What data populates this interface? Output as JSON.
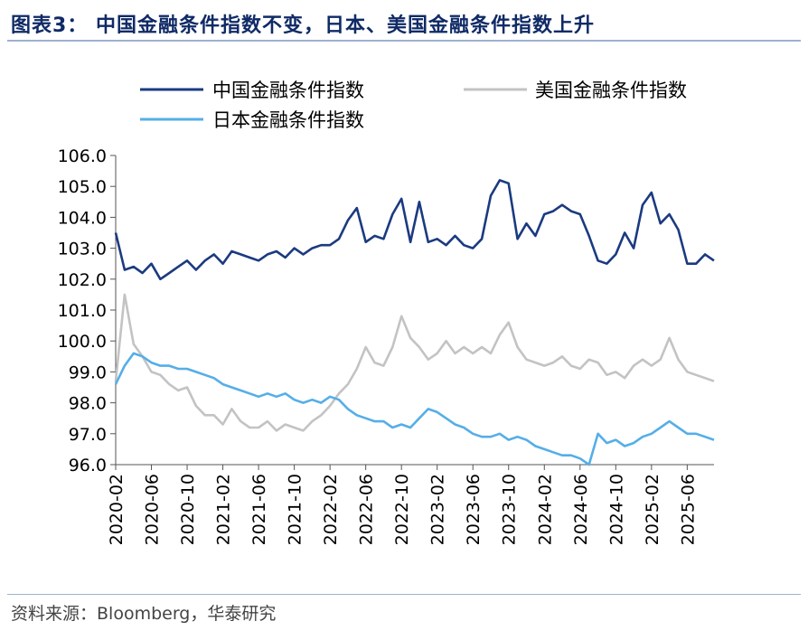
{
  "header": {
    "title": "图表3：  中国金融条件指数不变，日本、美国金融条件指数上升"
  },
  "footer": {
    "source": "资料来源：Bloomberg，华泰研究"
  },
  "colors": {
    "china": "#1b3a80",
    "us": "#c3c3c3",
    "japan": "#55aee8",
    "title": "#0f2a66",
    "rule": "#9fb0d0"
  },
  "chart_data": {
    "type": "line",
    "title": "",
    "xlabel": "",
    "ylabel": "",
    "ylim": [
      96.0,
      106.0
    ],
    "y_ticks": [
      "106.0",
      "105.0",
      "104.0",
      "103.0",
      "102.0",
      "101.0",
      "100.0",
      "99.0",
      "98.0",
      "97.0",
      "96.0"
    ],
    "x_tick_labels": [
      "2020-02",
      "2020-06",
      "2020-10",
      "2021-02",
      "2021-06",
      "2021-10",
      "2022-02",
      "2022-06",
      "2022-10",
      "2023-02",
      "2023-06",
      "2023-10",
      "2024-02",
      "2024-06",
      "2024-10",
      "2025-02",
      "2025-06"
    ],
    "x_range": [
      "2020-02",
      "2025-09"
    ],
    "grid": false,
    "legend_placement": "top",
    "series": [
      {
        "name": "中国金融条件指数",
        "color": "#1b3a80",
        "points": [
          [
            "2020-02",
            103.5
          ],
          [
            "2020-03",
            102.3
          ],
          [
            "2020-04",
            102.4
          ],
          [
            "2020-05",
            102.2
          ],
          [
            "2020-06",
            102.5
          ],
          [
            "2020-07",
            102.0
          ],
          [
            "2020-08",
            102.2
          ],
          [
            "2020-09",
            102.4
          ],
          [
            "2020-10",
            102.6
          ],
          [
            "2020-11",
            102.3
          ],
          [
            "2020-12",
            102.6
          ],
          [
            "2021-01",
            102.8
          ],
          [
            "2021-02",
            102.5
          ],
          [
            "2021-03",
            102.9
          ],
          [
            "2021-04",
            102.8
          ],
          [
            "2021-05",
            102.7
          ],
          [
            "2021-06",
            102.6
          ],
          [
            "2021-07",
            102.8
          ],
          [
            "2021-08",
            102.9
          ],
          [
            "2021-09",
            102.7
          ],
          [
            "2021-10",
            103.0
          ],
          [
            "2021-11",
            102.8
          ],
          [
            "2021-12",
            103.0
          ],
          [
            "2022-01",
            103.1
          ],
          [
            "2022-02",
            103.1
          ],
          [
            "2022-03",
            103.3
          ],
          [
            "2022-04",
            103.9
          ],
          [
            "2022-05",
            104.3
          ],
          [
            "2022-06",
            103.2
          ],
          [
            "2022-07",
            103.4
          ],
          [
            "2022-08",
            103.3
          ],
          [
            "2022-09",
            104.1
          ],
          [
            "2022-10",
            104.6
          ],
          [
            "2022-11",
            103.2
          ],
          [
            "2022-12",
            104.5
          ],
          [
            "2023-01",
            103.2
          ],
          [
            "2023-02",
            103.3
          ],
          [
            "2023-03",
            103.1
          ],
          [
            "2023-04",
            103.4
          ],
          [
            "2023-05",
            103.1
          ],
          [
            "2023-06",
            103.0
          ],
          [
            "2023-07",
            103.3
          ],
          [
            "2023-08",
            104.7
          ],
          [
            "2023-09",
            105.2
          ],
          [
            "2023-10",
            105.1
          ],
          [
            "2023-11",
            103.3
          ],
          [
            "2023-12",
            103.8
          ],
          [
            "2024-01",
            103.4
          ],
          [
            "2024-02",
            104.1
          ],
          [
            "2024-03",
            104.2
          ],
          [
            "2024-04",
            104.4
          ],
          [
            "2024-05",
            104.2
          ],
          [
            "2024-06",
            104.1
          ],
          [
            "2024-07",
            103.4
          ],
          [
            "2024-08",
            102.6
          ],
          [
            "2024-09",
            102.5
          ],
          [
            "2024-10",
            102.8
          ],
          [
            "2024-11",
            103.5
          ],
          [
            "2024-12",
            103.0
          ],
          [
            "2025-01",
            104.4
          ],
          [
            "2025-02",
            104.8
          ],
          [
            "2025-03",
            103.8
          ],
          [
            "2025-04",
            104.1
          ],
          [
            "2025-05",
            103.6
          ],
          [
            "2025-06",
            102.5
          ],
          [
            "2025-07",
            102.5
          ],
          [
            "2025-08",
            102.8
          ],
          [
            "2025-09",
            102.6
          ]
        ]
      },
      {
        "name": "美国金融条件指数",
        "color": "#c3c3c3",
        "points": [
          [
            "2020-02",
            98.7
          ],
          [
            "2020-03",
            101.5
          ],
          [
            "2020-04",
            99.9
          ],
          [
            "2020-05",
            99.5
          ],
          [
            "2020-06",
            99.0
          ],
          [
            "2020-07",
            98.9
          ],
          [
            "2020-08",
            98.6
          ],
          [
            "2020-09",
            98.4
          ],
          [
            "2020-10",
            98.5
          ],
          [
            "2020-11",
            97.9
          ],
          [
            "2020-12",
            97.6
          ],
          [
            "2021-01",
            97.6
          ],
          [
            "2021-02",
            97.3
          ],
          [
            "2021-03",
            97.8
          ],
          [
            "2021-04",
            97.4
          ],
          [
            "2021-05",
            97.2
          ],
          [
            "2021-06",
            97.2
          ],
          [
            "2021-07",
            97.4
          ],
          [
            "2021-08",
            97.1
          ],
          [
            "2021-09",
            97.3
          ],
          [
            "2021-10",
            97.2
          ],
          [
            "2021-11",
            97.1
          ],
          [
            "2021-12",
            97.4
          ],
          [
            "2022-01",
            97.6
          ],
          [
            "2022-02",
            97.9
          ],
          [
            "2022-03",
            98.3
          ],
          [
            "2022-04",
            98.6
          ],
          [
            "2022-05",
            99.1
          ],
          [
            "2022-06",
            99.8
          ],
          [
            "2022-07",
            99.3
          ],
          [
            "2022-08",
            99.2
          ],
          [
            "2022-09",
            99.8
          ],
          [
            "2022-10",
            100.8
          ],
          [
            "2022-11",
            100.1
          ],
          [
            "2022-12",
            99.8
          ],
          [
            "2023-01",
            99.4
          ],
          [
            "2023-02",
            99.6
          ],
          [
            "2023-03",
            100.0
          ],
          [
            "2023-04",
            99.6
          ],
          [
            "2023-05",
            99.8
          ],
          [
            "2023-06",
            99.6
          ],
          [
            "2023-07",
            99.8
          ],
          [
            "2023-08",
            99.6
          ],
          [
            "2023-09",
            100.2
          ],
          [
            "2023-10",
            100.6
          ],
          [
            "2023-11",
            99.8
          ],
          [
            "2023-12",
            99.4
          ],
          [
            "2024-01",
            99.3
          ],
          [
            "2024-02",
            99.2
          ],
          [
            "2024-03",
            99.3
          ],
          [
            "2024-04",
            99.5
          ],
          [
            "2024-05",
            99.2
          ],
          [
            "2024-06",
            99.1
          ],
          [
            "2024-07",
            99.4
          ],
          [
            "2024-08",
            99.3
          ],
          [
            "2024-09",
            98.9
          ],
          [
            "2024-10",
            99.0
          ],
          [
            "2024-11",
            98.8
          ],
          [
            "2024-12",
            99.2
          ],
          [
            "2025-01",
            99.4
          ],
          [
            "2025-02",
            99.2
          ],
          [
            "2025-03",
            99.4
          ],
          [
            "2025-04",
            100.1
          ],
          [
            "2025-05",
            99.4
          ],
          [
            "2025-06",
            99.0
          ],
          [
            "2025-07",
            98.9
          ],
          [
            "2025-08",
            98.8
          ],
          [
            "2025-09",
            98.7
          ]
        ]
      },
      {
        "name": "日本金融条件指数",
        "color": "#55aee8",
        "points": [
          [
            "2020-02",
            98.6
          ],
          [
            "2020-03",
            99.2
          ],
          [
            "2020-04",
            99.6
          ],
          [
            "2020-05",
            99.5
          ],
          [
            "2020-06",
            99.3
          ],
          [
            "2020-07",
            99.2
          ],
          [
            "2020-08",
            99.2
          ],
          [
            "2020-09",
            99.1
          ],
          [
            "2020-10",
            99.1
          ],
          [
            "2020-11",
            99.0
          ],
          [
            "2020-12",
            98.9
          ],
          [
            "2021-01",
            98.8
          ],
          [
            "2021-02",
            98.6
          ],
          [
            "2021-03",
            98.5
          ],
          [
            "2021-04",
            98.4
          ],
          [
            "2021-05",
            98.3
          ],
          [
            "2021-06",
            98.2
          ],
          [
            "2021-07",
            98.3
          ],
          [
            "2021-08",
            98.2
          ],
          [
            "2021-09",
            98.3
          ],
          [
            "2021-10",
            98.1
          ],
          [
            "2021-11",
            98.0
          ],
          [
            "2021-12",
            98.1
          ],
          [
            "2022-01",
            98.0
          ],
          [
            "2022-02",
            98.2
          ],
          [
            "2022-03",
            98.1
          ],
          [
            "2022-04",
            97.8
          ],
          [
            "2022-05",
            97.6
          ],
          [
            "2022-06",
            97.5
          ],
          [
            "2022-07",
            97.4
          ],
          [
            "2022-08",
            97.4
          ],
          [
            "2022-09",
            97.2
          ],
          [
            "2022-10",
            97.3
          ],
          [
            "2022-11",
            97.2
          ],
          [
            "2022-12",
            97.5
          ],
          [
            "2023-01",
            97.8
          ],
          [
            "2023-02",
            97.7
          ],
          [
            "2023-03",
            97.5
          ],
          [
            "2023-04",
            97.3
          ],
          [
            "2023-05",
            97.2
          ],
          [
            "2023-06",
            97.0
          ],
          [
            "2023-07",
            96.9
          ],
          [
            "2023-08",
            96.9
          ],
          [
            "2023-09",
            97.0
          ],
          [
            "2023-10",
            96.8
          ],
          [
            "2023-11",
            96.9
          ],
          [
            "2023-12",
            96.8
          ],
          [
            "2024-01",
            96.6
          ],
          [
            "2024-02",
            96.5
          ],
          [
            "2024-03",
            96.4
          ],
          [
            "2024-04",
            96.3
          ],
          [
            "2024-05",
            96.3
          ],
          [
            "2024-06",
            96.2
          ],
          [
            "2024-07",
            96.0
          ],
          [
            "2024-08",
            97.0
          ],
          [
            "2024-09",
            96.7
          ],
          [
            "2024-10",
            96.8
          ],
          [
            "2024-11",
            96.6
          ],
          [
            "2024-12",
            96.7
          ],
          [
            "2025-01",
            96.9
          ],
          [
            "2025-02",
            97.0
          ],
          [
            "2025-03",
            97.2
          ],
          [
            "2025-04",
            97.4
          ],
          [
            "2025-05",
            97.2
          ],
          [
            "2025-06",
            97.0
          ],
          [
            "2025-07",
            97.0
          ],
          [
            "2025-08",
            96.9
          ],
          [
            "2025-09",
            96.8
          ]
        ]
      }
    ]
  }
}
